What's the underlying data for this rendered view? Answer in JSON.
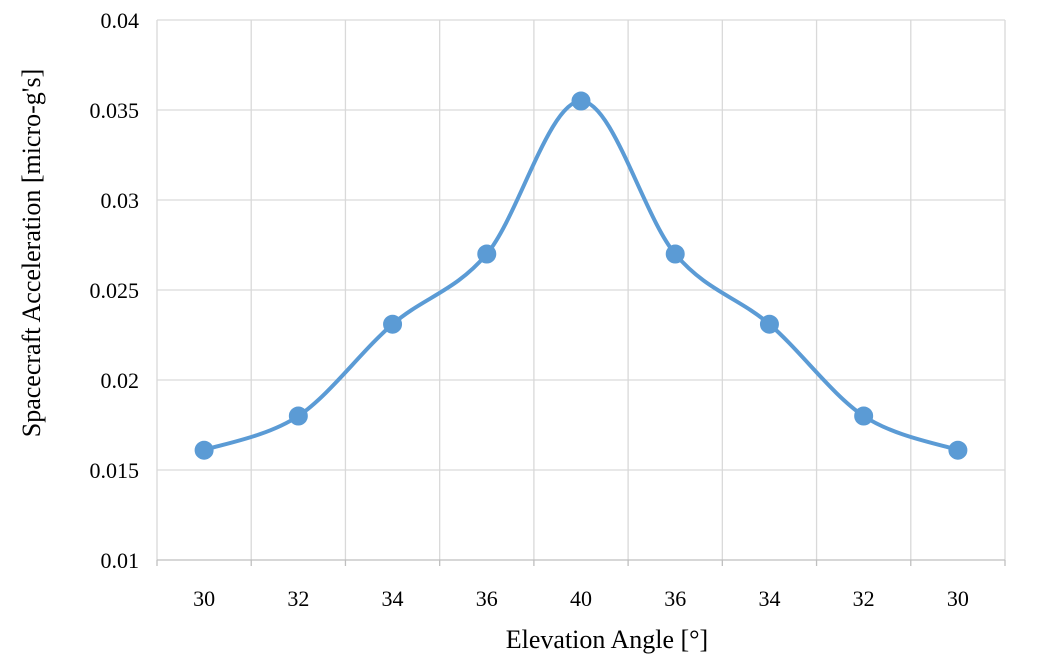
{
  "chart_data": {
    "type": "line",
    "smooth": true,
    "markers": true,
    "categories": [
      "30",
      "32",
      "34",
      "36",
      "40",
      "36",
      "34",
      "32",
      "30"
    ],
    "series": [
      {
        "values": [
          0.0161,
          0.018,
          0.0231,
          0.027,
          0.0355,
          0.027,
          0.0231,
          0.018,
          0.0161
        ],
        "color": "#5b9bd5"
      }
    ],
    "xlabel": "Elevation Angle [°]",
    "ylabel": "Spacecraft  Acceleration [micro-g's]",
    "ylim": [
      0.01,
      0.04
    ],
    "yticks": [
      "0.01",
      "0.015",
      "0.02",
      "0.025",
      "0.03",
      "0.035",
      "0.04"
    ],
    "grid": true,
    "gridColor": "#d9d9d9",
    "legend": "none"
  }
}
